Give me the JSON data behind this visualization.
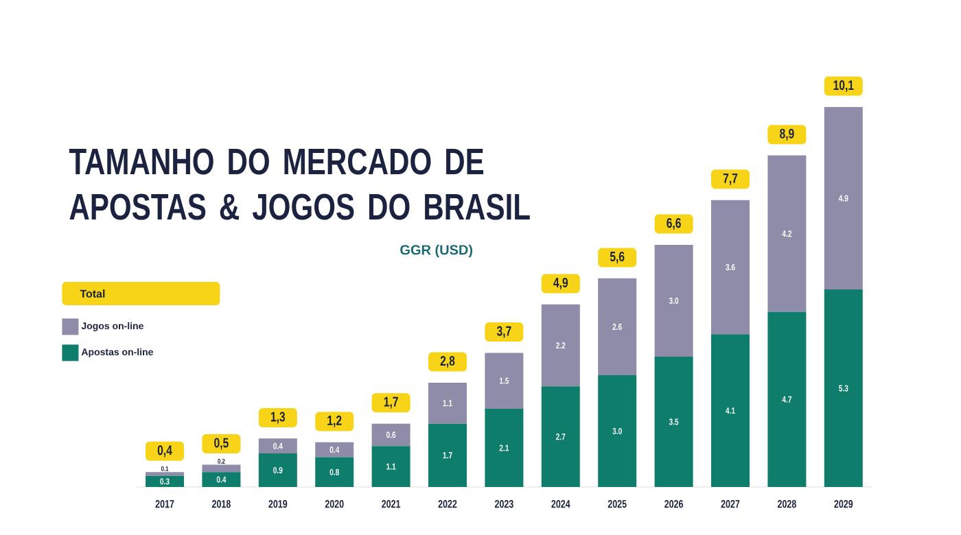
{
  "chart_data": {
    "type": "bar",
    "stacked": true,
    "title": "TAMANHO DO MERCADO DE APOSTAS & JOGOS DO BRASIL",
    "subtitle": "GGR (USD)",
    "legend_title": "Total",
    "legend": "left",
    "categories": [
      "2017",
      "2018",
      "2019",
      "2020",
      "2021",
      "2022",
      "2023",
      "2024",
      "2025",
      "2026",
      "2027",
      "2028",
      "2029"
    ],
    "series": [
      {
        "name": "Apostas on-line",
        "color": "#0f7d6b",
        "values": [
          0.3,
          0.4,
          0.9,
          0.8,
          1.1,
          1.7,
          2.1,
          2.7,
          3.0,
          3.5,
          4.1,
          4.7,
          5.3
        ],
        "value_labels": [
          "0.3",
          "0.4",
          "0.9",
          "0.8",
          "1.1",
          "1.7",
          "2.1",
          "2.7",
          "3.0",
          "3.5",
          "4.1",
          "4.7",
          "5.3"
        ]
      },
      {
        "name": "Jogos on-line",
        "color": "#8e8ca8",
        "values": [
          0.1,
          0.2,
          0.4,
          0.4,
          0.6,
          1.1,
          1.5,
          2.2,
          2.6,
          3.0,
          3.6,
          4.2,
          4.9
        ],
        "value_labels": [
          "0.1",
          "0.2",
          "0.4",
          "0.4",
          "0.6",
          "1.1",
          "1.5",
          "2.2",
          "2.6",
          "3.0",
          "3.6",
          "4.2",
          "4.9"
        ]
      }
    ],
    "totals": [
      "0,4",
      "0,5",
      "1,3",
      "1,2",
      "1,7",
      "2,8",
      "3,7",
      "4,9",
      "5,6",
      "6,6",
      "7,7",
      "8,9",
      "10,1"
    ]
  }
}
